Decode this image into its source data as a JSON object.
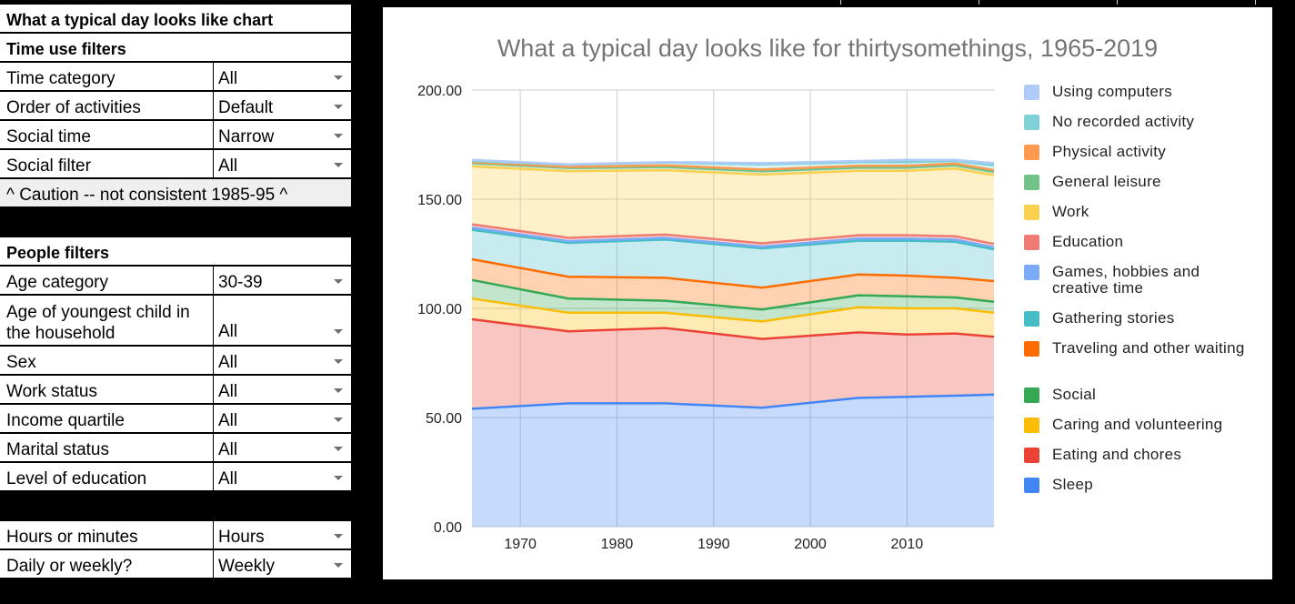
{
  "panel": {
    "title": "What a typical day looks like chart",
    "time_section": "Time use filters",
    "time_category": {
      "label": "Time category",
      "value": "All"
    },
    "order_activities": {
      "label": "Order of activities",
      "value": "Default"
    },
    "social_time": {
      "label": "Social time",
      "value": "Narrow"
    },
    "social_filter": {
      "label": "Social filter",
      "value": "All"
    },
    "caution_text": "^ Caution -- not consistent 1985-95 ^",
    "people_section": "People filters",
    "age_category": {
      "label": "Age category",
      "value": "30-39"
    },
    "youngest_child": {
      "label": "Age of youngest child in the household",
      "value": "All"
    },
    "sex": {
      "label": "Sex",
      "value": "All"
    },
    "work_status": {
      "label": "Work status",
      "value": "All"
    },
    "income_quartile": {
      "label": "Income quartile",
      "value": "All"
    },
    "marital_status": {
      "label": "Marital status",
      "value": "All"
    },
    "education_level": {
      "label": "Level of education",
      "value": "All"
    },
    "hours_minutes": {
      "label": "Hours or minutes",
      "value": "Hours"
    },
    "daily_weekly": {
      "label": "Daily or weekly?",
      "value": "Weekly"
    }
  },
  "chart_data": {
    "type": "area",
    "stacked": true,
    "title": "What a typical day looks like for thirtysomethings, 1965-2019",
    "xlabel": "",
    "ylabel": "",
    "x": [
      1965,
      1975,
      1985,
      1995,
      2005,
      2010,
      2015,
      2019
    ],
    "xlim": [
      1965,
      2019
    ],
    "xticks": [
      "1970",
      "1980",
      "1990",
      "2000",
      "2010"
    ],
    "xtick_values": [
      1970,
      1980,
      1990,
      2000,
      2010
    ],
    "ylim": [
      0,
      200
    ],
    "yticks": [
      "0.00",
      "50.00",
      "100.00",
      "150.00",
      "200.00"
    ],
    "ytick_values": [
      0,
      50,
      100,
      150,
      200
    ],
    "grid": true,
    "legend_position": "right",
    "series": [
      {
        "name": "Sleep",
        "color": "#4285f4",
        "values": [
          54,
          56.5,
          56.5,
          54.5,
          59,
          59.5,
          60,
          60.5
        ]
      },
      {
        "name": "Eating and chores",
        "color": "#ea4335",
        "values": [
          41,
          33,
          34.5,
          31.5,
          30,
          28.5,
          28.5,
          26.5
        ]
      },
      {
        "name": "Caring and volunteering",
        "color": "#fbbc04",
        "values": [
          9.5,
          8.5,
          7,
          8,
          11.5,
          12,
          11.5,
          11
        ]
      },
      {
        "name": "Social",
        "color": "#34a853",
        "values": [
          8.5,
          6.5,
          5.5,
          5.5,
          5.5,
          5.5,
          5,
          5
        ]
      },
      {
        "name": "Traveling and other waiting",
        "color": "#ff6d01",
        "values": [
          9.5,
          10,
          10.5,
          10,
          9.5,
          9.5,
          9,
          9.5
        ]
      },
      {
        "name": "Gathering stories",
        "color": "#46bdc6",
        "values": [
          13.5,
          15.5,
          17.5,
          18,
          15.5,
          16,
          16.5,
          14.5
        ]
      },
      {
        "name": "Games, hobbies and creative time",
        "color": "#7baaf7",
        "values": [
          1,
          0.8,
          0.8,
          0.8,
          1,
          1,
          1,
          1
        ]
      },
      {
        "name": "Education",
        "color": "#f07b72",
        "values": [
          1.5,
          1.5,
          1.5,
          1.5,
          1.5,
          1.5,
          1.5,
          1.5
        ]
      },
      {
        "name": "Work",
        "color": "#fcd04f",
        "values": [
          26.5,
          30.5,
          29.5,
          31.5,
          29.5,
          29.5,
          31,
          31.5
        ]
      },
      {
        "name": "General leisure",
        "color": "#71c287",
        "values": [
          1.5,
          1.5,
          1.5,
          1.5,
          1.5,
          1.5,
          1.5,
          1.5
        ]
      },
      {
        "name": "Physical activity",
        "color": "#ff994d",
        "values": [
          0.5,
          0.5,
          0.7,
          0.8,
          0.8,
          0.8,
          0.8,
          0.8
        ]
      },
      {
        "name": "No recorded activity",
        "color": "#7ed1d7",
        "values": [
          0.5,
          1,
          1.3,
          2.4,
          1.7,
          1.7,
          1.2,
          2.2
        ]
      },
      {
        "name": "Using computers",
        "color": "#afcbfa",
        "values": [
          0.5,
          0.2,
          0.2,
          0.5,
          0.5,
          1,
          0.5,
          1
        ]
      }
    ]
  }
}
